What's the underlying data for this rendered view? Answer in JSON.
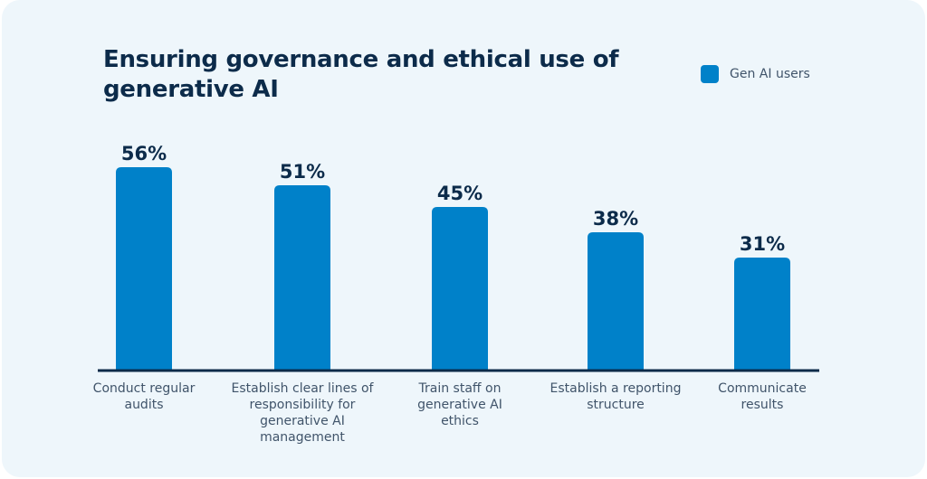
{
  "chart_data": {
    "type": "bar",
    "title": "Ensuring governance and ethical use of generative AI",
    "categories": [
      "Conduct regular audits",
      "Establish clear lines of responsibility for generative AI management",
      "Train staff on generative AI ethics",
      "Establish a reporting structure",
      "Communicate results"
    ],
    "category_lines": [
      [
        "Conduct regular",
        "audits"
      ],
      [
        "Establish clear lines of",
        "responsibility for",
        "generative AI",
        "management"
      ],
      [
        "Train staff on",
        "generative AI",
        "ethics"
      ],
      [
        "Establish a reporting",
        "structure"
      ],
      [
        "Communicate",
        "results"
      ]
    ],
    "series": [
      {
        "name": "Gen AI users",
        "values": [
          56,
          51,
          45,
          38,
          31
        ]
      }
    ],
    "value_labels": [
      "56%",
      "51%",
      "45%",
      "38%",
      "31%"
    ],
    "unit": "%",
    "xlabel": "",
    "ylabel": "",
    "ylim": [
      0,
      100
    ],
    "grid": false,
    "legend_position": "top-right",
    "colors": {
      "bar": "#0081c9",
      "baseline": "#0c2b4a",
      "background": "#eef6fb"
    }
  }
}
